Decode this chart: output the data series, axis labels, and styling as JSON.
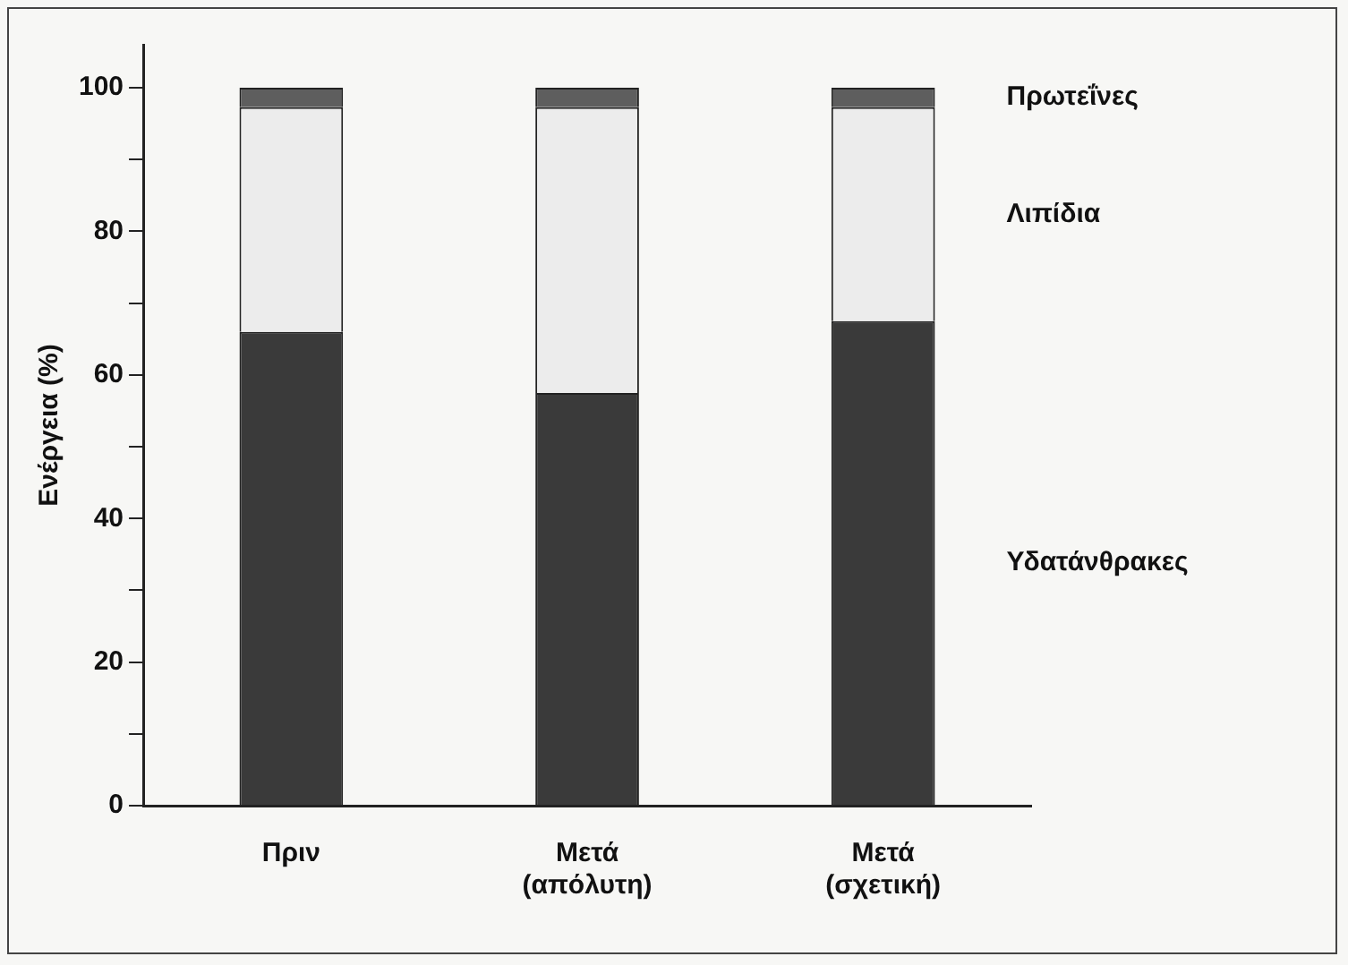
{
  "chart_data": {
    "type": "bar",
    "stacked": true,
    "ylabel": "Ενέργεια (%)",
    "categories": [
      "Πριν",
      "Μετά (απόλυτη)",
      "Μετά (σχετική)"
    ],
    "series": [
      {
        "name": "Υδατάνθρακες",
        "color": "#3a3a3a",
        "values": [
          66,
          57.5,
          67.5
        ]
      },
      {
        "name": "Λιπίδια",
        "color": "#ececec",
        "values": [
          31.3,
          39.8,
          29.8
        ]
      },
      {
        "name": "Πρωτεΐνες",
        "color": "#5e5e5e",
        "values": [
          2.7,
          2.7,
          2.7
        ]
      }
    ],
    "ylim": [
      0,
      106
    ],
    "yticks": [
      0,
      {
        "value": 10,
        "label": null
      },
      20,
      {
        "value": 30,
        "label": null
      },
      40,
      {
        "value": 50,
        "label": null
      },
      60,
      {
        "value": 70,
        "label": null
      },
      80,
      {
        "value": 90,
        "label": null
      },
      100
    ],
    "grid": false,
    "legend": false
  }
}
